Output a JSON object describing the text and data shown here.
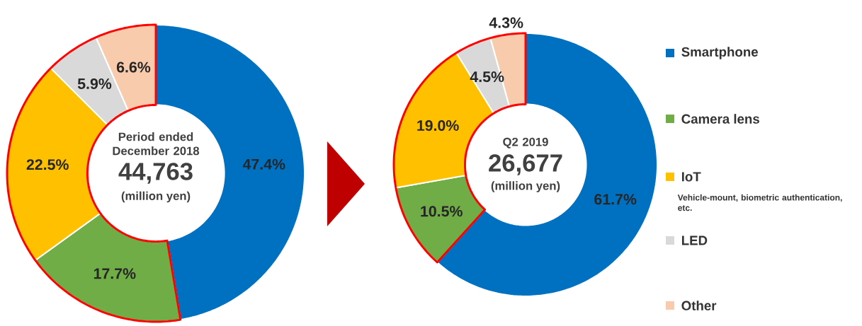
{
  "chart_data": [
    {
      "type": "donut",
      "title": "Period ended December 2018",
      "annotations": [
        "44,763",
        "(million yen)"
      ],
      "categories": [
        null,
        null,
        null,
        null,
        null
      ],
      "values": [
        47.4,
        17.7,
        22.5,
        5.9,
        6.6
      ],
      "value_labels": [
        "47.4%",
        "17.7%",
        "22.5%",
        "5.9%",
        "6.6%"
      ],
      "colors": [
        "#0070c0",
        "#70ad47",
        "#ffc000",
        "#d9d9d9",
        "#f8cbad"
      ]
    },
    {
      "type": "donut",
      "title": "Q2 2019",
      "annotations": [
        "26,677",
        "(million yen)",
        "Vehicle-mount, biometric authentication, etc."
      ],
      "categories": [
        "Smartphone",
        "Camera lens",
        "IoT",
        "LED",
        "Other"
      ],
      "values": [
        61.7,
        10.5,
        19.0,
        4.5,
        4.3
      ],
      "value_labels": [
        "61.7%",
        "10.5%",
        "19.0%",
        "4.5%",
        "4.3%"
      ],
      "colors": [
        "#0070c0",
        "#70ad47",
        "#ffc000",
        "#d9d9d9",
        "#f8cbad"
      ],
      "legend": "right"
    }
  ]
}
